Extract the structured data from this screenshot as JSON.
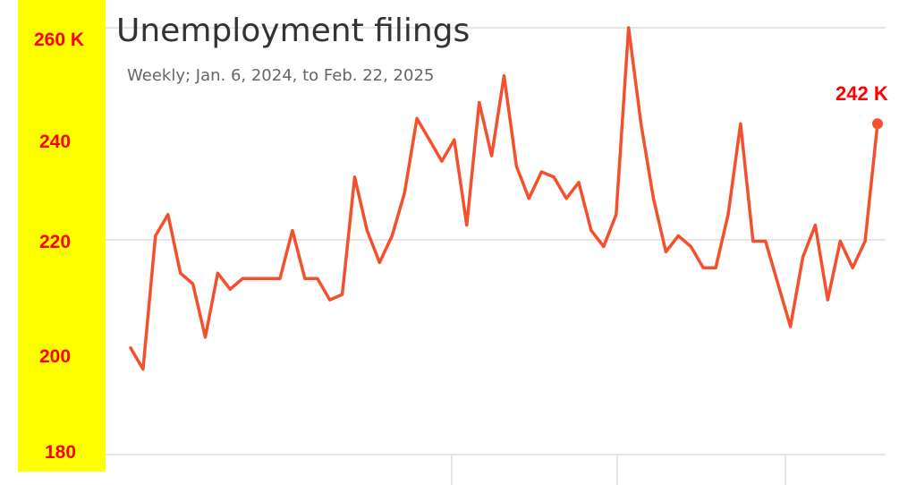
{
  "colors": {
    "axis_band": "#ffff00",
    "line": "#f4502e",
    "tick_text": "#ff0000",
    "title_text": "#333333",
    "subtitle_text": "#666666",
    "grid": "#e6e6e6"
  },
  "chart_data": {
    "type": "line",
    "title": "Unemployment filings",
    "subtitle": "Weekly; Jan. 6, 2024, to Feb. 22, 2025",
    "y_ticks": [
      {
        "value": 260,
        "label": "260 K"
      },
      {
        "value": 240,
        "label": "240"
      },
      {
        "value": 220,
        "label": "220"
      },
      {
        "value": 200,
        "label": "200"
      },
      {
        "value": 180,
        "label": "180"
      }
    ],
    "ylim": [
      180,
      260
    ],
    "grid": true,
    "end_label": "242 K",
    "series": [
      {
        "values": [
          200,
          196,
          221,
          225,
          214,
          212,
          202,
          214,
          211,
          213,
          213,
          213,
          213,
          222,
          213,
          213,
          209,
          210,
          232,
          222,
          216,
          221,
          229,
          243,
          239,
          235,
          239,
          223,
          246,
          236,
          251,
          234,
          228,
          233,
          232,
          228,
          231,
          222,
          219,
          225,
          260,
          242,
          228,
          218,
          221,
          219,
          215,
          215,
          225,
          242,
          220,
          220,
          212,
          204,
          217,
          223,
          209,
          220,
          215,
          220,
          242
        ]
      }
    ]
  }
}
